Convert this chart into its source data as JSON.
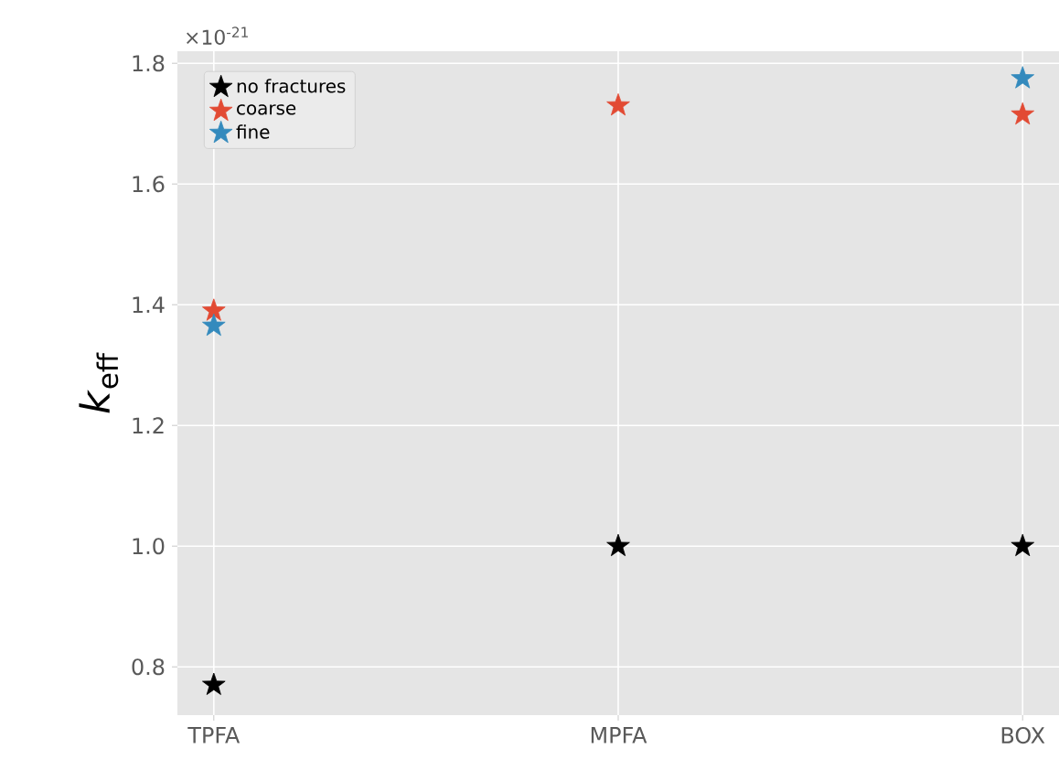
{
  "chart_data": {
    "type": "scatter",
    "ylabel": "*k*$_{eff}$",
    "categories": [
      "TPFA",
      "MPFA",
      "BOX"
    ],
    "series": [
      {
        "name": "no fractures",
        "color": "#000000",
        "values": [
          0.77,
          1.0,
          1.0
        ]
      },
      {
        "name": "coarse",
        "color": "#e24a33",
        "values": [
          1.39,
          1.73,
          1.715
        ]
      },
      {
        "name": "fine",
        "color": "#348abd",
        "values": [
          1.365,
          null,
          1.775
        ]
      }
    ],
    "marker": "star",
    "ylim": [
      0.72,
      1.82
    ],
    "yticks": [
      0.8,
      {
        "value": 1.0,
        "label": "1.0"
      },
      1.2,
      1.4,
      1.6,
      1.8
    ],
    "grid": true,
    "legend": "top left",
    "annotations": [
      "×10$^{-21}$"
    ]
  }
}
